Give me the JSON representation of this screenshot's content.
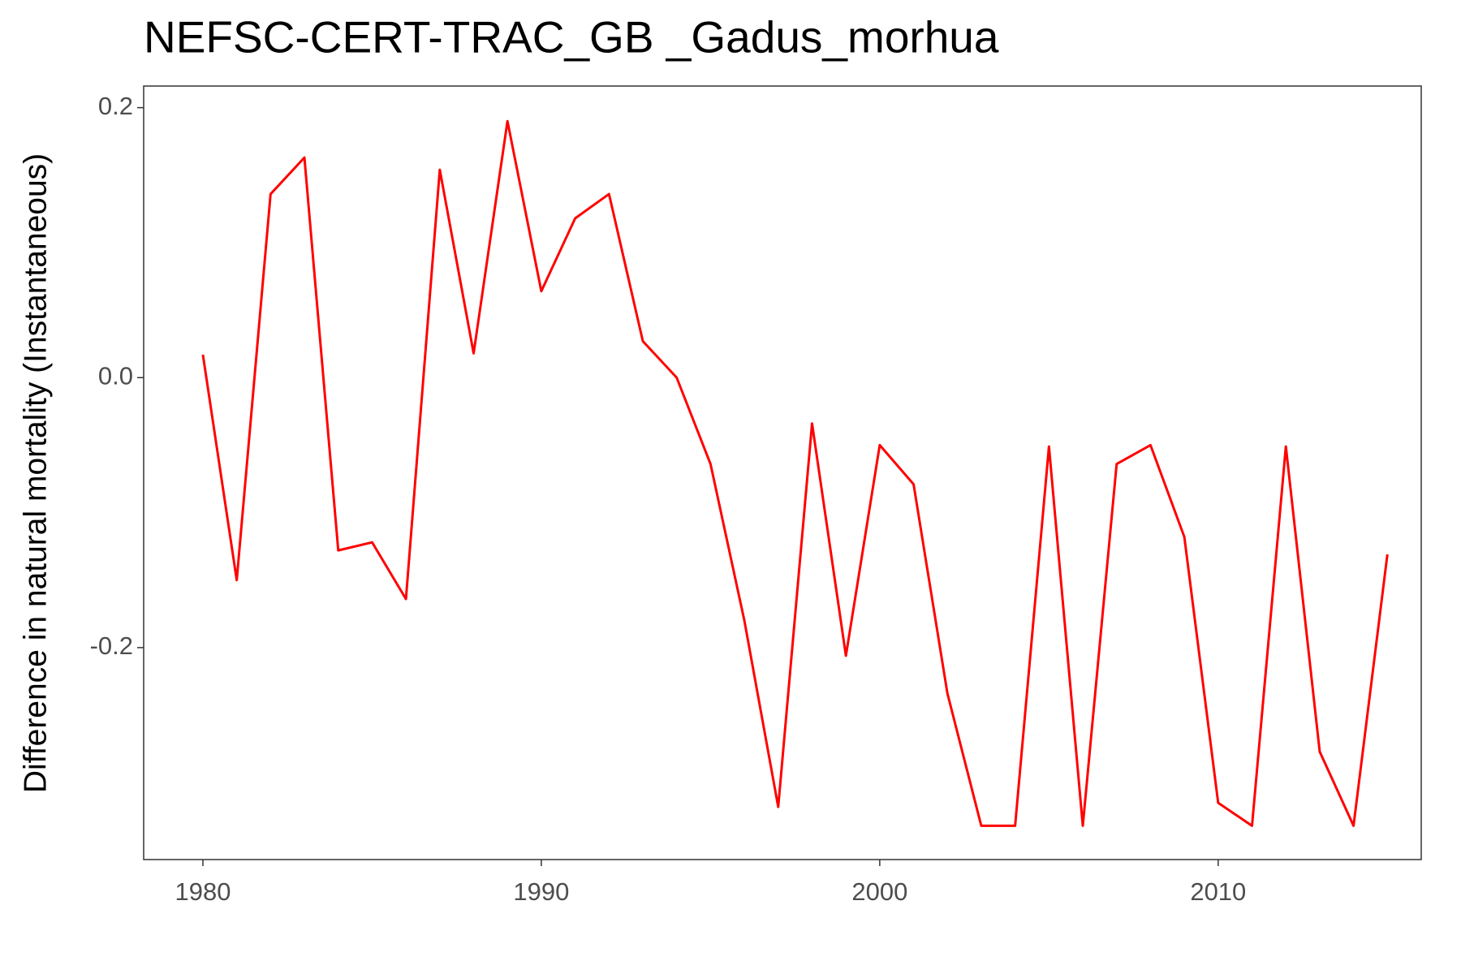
{
  "chart_data": {
    "type": "line",
    "title": "NEFSC-CERT-TRAC_GB _Gadus_morhua",
    "y_label": "Difference in natural mortality (Instantaneous)",
    "x": [
      1980,
      1981,
      1982,
      1983,
      1984,
      1985,
      1986,
      1987,
      1988,
      1989,
      1990,
      1991,
      1992,
      1993,
      1994,
      1995,
      1996,
      1997,
      1998,
      1999,
      2000,
      2001,
      2002,
      2003,
      2004,
      2005,
      2006,
      2007,
      2008,
      2009,
      2010,
      2011,
      2012,
      2013,
      2014,
      2015
    ],
    "series": [
      {
        "color": "#ff0000",
        "values": [
          0.017,
          -0.15,
          0.136,
          0.163,
          -0.128,
          -0.122,
          -0.164,
          0.154,
          0.018,
          0.19,
          0.064,
          0.118,
          0.136,
          0.027,
          0.0,
          -0.064,
          -0.18,
          -0.318,
          -0.034,
          -0.206,
          -0.05,
          -0.079,
          -0.234,
          -0.332,
          -0.332,
          -0.051,
          -0.332,
          -0.064,
          -0.05,
          -0.118,
          -0.315,
          -0.332,
          -0.051,
          -0.277,
          -0.332,
          -0.131
        ]
      }
    ],
    "xlim": [
      1978.25,
      2016
    ],
    "ylim": [
      -0.357,
      0.216
    ],
    "xticks": [
      1980,
      1990,
      2000,
      2010
    ],
    "yticks": [
      -0.2,
      {
        "value": 0,
        "label": "0.0"
      },
      0.2
    ]
  }
}
